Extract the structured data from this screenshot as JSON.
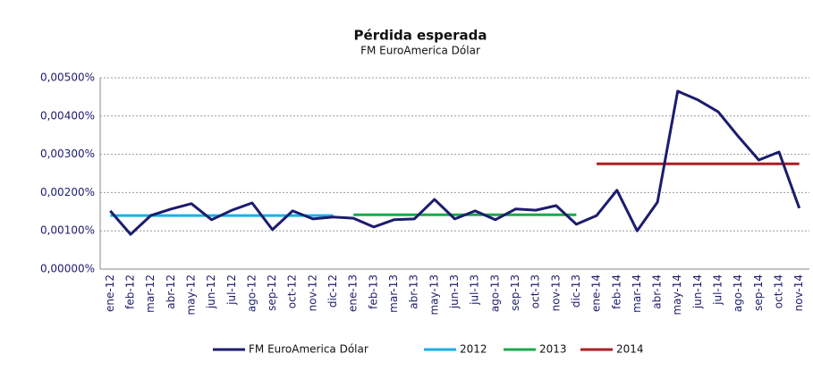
{
  "chart_data": {
    "type": "line",
    "title": "Pérdida esperada",
    "subtitle": "FM EuroAmerica Dólar",
    "categories": [
      "ene-12",
      "feb-12",
      "mar-12",
      "abr-12",
      "may-12",
      "jun-12",
      "jul-12",
      "ago-12",
      "sep-12",
      "oct-12",
      "nov-12",
      "dic-12",
      "ene-13",
      "feb-13",
      "mar-13",
      "abr-13",
      "may-13",
      "jun-13",
      "jul-13",
      "ago-13",
      "sep-13",
      "oct-13",
      "nov-13",
      "dic-13",
      "ene-14",
      "feb-14",
      "mar-14",
      "abr-14",
      "may-14",
      "jun-14",
      "jul-14",
      "ago-14",
      "sep-14",
      "oct-14",
      "nov-14"
    ],
    "series": [
      {
        "name": "FM EuroAmerica Dólar",
        "color": "#1c1c6e",
        "values": [
          0.00152,
          0.00091,
          0.0014,
          0.00157,
          0.00171,
          0.00129,
          0.00154,
          0.00173,
          0.00103,
          0.00152,
          0.00131,
          0.00136,
          0.00133,
          0.0011,
          0.00129,
          0.00131,
          0.00182,
          0.00131,
          0.00152,
          0.00129,
          0.00157,
          0.00154,
          0.00166,
          0.00117,
          0.0014,
          0.00206,
          0.001,
          0.00175,
          0.00465,
          0.00442,
          0.00411,
          0.00346,
          0.00285,
          0.00306,
          0.00159
        ]
      },
      {
        "name": "2012",
        "color": "#1ab0e6",
        "values": [
          0.0014,
          0.0014,
          0.0014,
          0.0014,
          0.0014,
          0.0014,
          0.0014,
          0.0014,
          0.0014,
          0.0014,
          0.0014,
          0.0014,
          null,
          null,
          null,
          null,
          null,
          null,
          null,
          null,
          null,
          null,
          null,
          null,
          null,
          null,
          null,
          null,
          null,
          null,
          null,
          null,
          null,
          null,
          null
        ]
      },
      {
        "name": "2013",
        "color": "#1ea84a",
        "values": [
          null,
          null,
          null,
          null,
          null,
          null,
          null,
          null,
          null,
          null,
          null,
          null,
          0.00142,
          0.00142,
          0.00142,
          0.00142,
          0.00142,
          0.00142,
          0.00142,
          0.00142,
          0.00142,
          0.00142,
          0.00142,
          0.00142,
          null,
          null,
          null,
          null,
          null,
          null,
          null,
          null,
          null,
          null,
          null
        ]
      },
      {
        "name": "2014",
        "color": "#b01e23",
        "values": [
          null,
          null,
          null,
          null,
          null,
          null,
          null,
          null,
          null,
          null,
          null,
          null,
          null,
          null,
          null,
          null,
          null,
          null,
          null,
          null,
          null,
          null,
          null,
          null,
          0.00275,
          0.00275,
          0.00275,
          0.00275,
          0.00275,
          0.00275,
          0.00275,
          0.00275,
          0.00275,
          0.00275,
          0.00275
        ]
      }
    ],
    "ylim": [
      0,
      0.005
    ],
    "yticks": [
      {
        "value": 0,
        "label": "0,00000%"
      },
      {
        "value": 0.001,
        "label": "0,00100%"
      },
      {
        "value": 0.002,
        "label": "0,00200%"
      },
      {
        "value": 0.003,
        "label": "0,00300%"
      },
      {
        "value": 0.004,
        "label": "0,00400%"
      },
      {
        "value": 0.005,
        "label": "0,00500%"
      }
    ],
    "grid": true,
    "legend": "bottom"
  }
}
